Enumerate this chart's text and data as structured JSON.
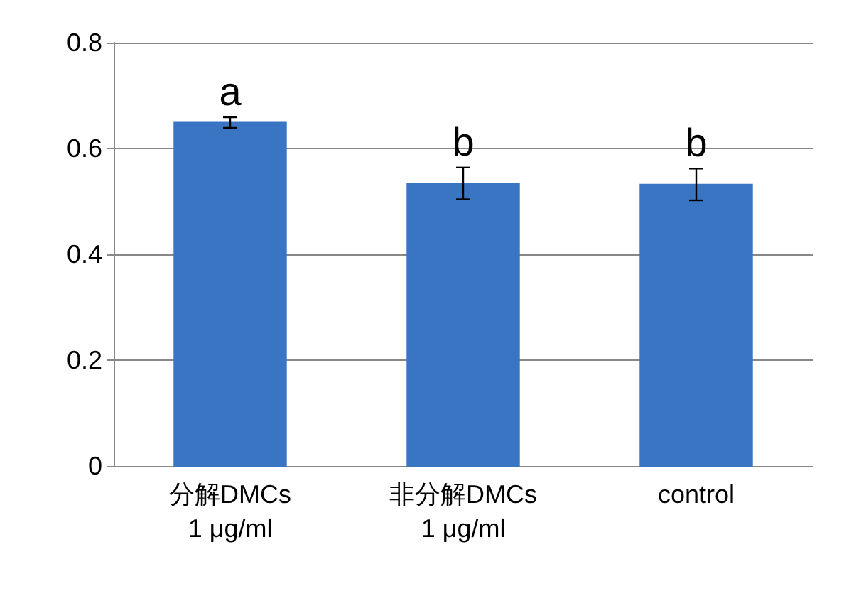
{
  "chart_data": {
    "type": "bar",
    "categories": [
      "分解DMCs\n1 μg/ml",
      "非分解DMCs\n1 μg/ml",
      "control"
    ],
    "values": [
      0.649,
      0.534,
      0.532
    ],
    "errors": [
      0.01,
      0.03,
      0.03
    ],
    "color": "#3a75c4",
    "ylim": [
      0,
      0.8
    ],
    "yticks": [
      0,
      0.2,
      0.4,
      0.6,
      0.8
    ],
    "grid": "y",
    "annotations": [
      "a",
      "b",
      "b"
    ]
  }
}
